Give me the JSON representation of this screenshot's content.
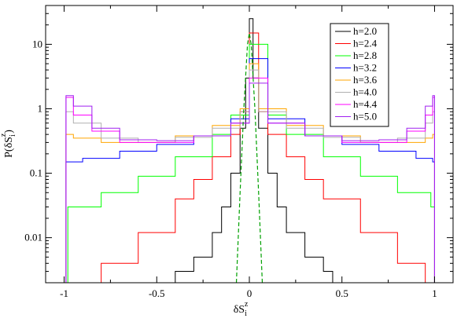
{
  "chart_data": {
    "type": "line",
    "xlabel": {
      "main": "δS",
      "sub": "i",
      "sup": "z"
    },
    "ylabel": {
      "main": "P(δS",
      "sub": "i",
      "sup": "z",
      "close": ")"
    },
    "xlim": [
      -1.1,
      1.1
    ],
    "ylim": [
      0.002,
      40
    ],
    "yscale": "log",
    "xticks": [
      -1,
      -0.5,
      0,
      0.5,
      1
    ],
    "xtick_labels": [
      "-1",
      "-0.5",
      "0",
      "0.5",
      "1"
    ],
    "yticks": [
      0.01,
      0.1,
      1,
      10
    ],
    "ytick_labels": [
      "0.01",
      "0.1",
      "1",
      "10"
    ],
    "legend_position": "top-right",
    "series": [
      {
        "name": "h=2.0",
        "color": "#000000",
        "points": [
          [
            -0.45,
            0.002
          ],
          [
            -0.4,
            0.003
          ],
          [
            -0.3,
            0.005
          ],
          [
            -0.2,
            0.012
          ],
          [
            -0.15,
            0.03
          ],
          [
            -0.1,
            0.1
          ],
          [
            -0.05,
            0.5
          ],
          [
            -0.02,
            3
          ],
          [
            0,
            25
          ],
          [
            0.02,
            3
          ],
          [
            0.05,
            0.5
          ],
          [
            0.1,
            0.1
          ],
          [
            0.15,
            0.03
          ],
          [
            0.2,
            0.012
          ],
          [
            0.3,
            0.005
          ],
          [
            0.4,
            0.003
          ],
          [
            0.45,
            0.002
          ]
        ]
      },
      {
        "name": "h=2.4",
        "color": "#ff0000",
        "points": [
          [
            -0.95,
            0.002
          ],
          [
            -0.8,
            0.004
          ],
          [
            -0.6,
            0.012
          ],
          [
            -0.4,
            0.04
          ],
          [
            -0.3,
            0.08
          ],
          [
            -0.2,
            0.18
          ],
          [
            -0.1,
            0.4
          ],
          [
            -0.05,
            0.9
          ],
          [
            0,
            15
          ],
          [
            0.05,
            0.9
          ],
          [
            0.1,
            0.4
          ],
          [
            0.2,
            0.18
          ],
          [
            0.3,
            0.08
          ],
          [
            0.4,
            0.04
          ],
          [
            0.6,
            0.012
          ],
          [
            0.8,
            0.004
          ],
          [
            0.95,
            0.002
          ]
        ]
      },
      {
        "name": "h=2.8",
        "color": "#00ff00",
        "points": [
          [
            -1,
            0.002
          ],
          [
            -0.98,
            0.03
          ],
          [
            -0.8,
            0.05
          ],
          [
            -0.6,
            0.09
          ],
          [
            -0.4,
            0.18
          ],
          [
            -0.2,
            0.4
          ],
          [
            -0.1,
            0.8
          ],
          [
            0,
            10
          ],
          [
            0.1,
            0.8
          ],
          [
            0.2,
            0.4
          ],
          [
            0.4,
            0.18
          ],
          [
            0.6,
            0.09
          ],
          [
            0.8,
            0.05
          ],
          [
            0.98,
            0.03
          ],
          [
            1,
            0.002
          ]
        ]
      },
      {
        "name": "h=3.2",
        "color": "#0000ff",
        "points": [
          [
            -1,
            0.002
          ],
          [
            -0.99,
            0.15
          ],
          [
            -0.9,
            0.17
          ],
          [
            -0.7,
            0.22
          ],
          [
            -0.5,
            0.28
          ],
          [
            -0.3,
            0.38
          ],
          [
            -0.1,
            0.7
          ],
          [
            0,
            6
          ],
          [
            0.1,
            0.7
          ],
          [
            0.3,
            0.38
          ],
          [
            0.5,
            0.28
          ],
          [
            0.7,
            0.22
          ],
          [
            0.9,
            0.17
          ],
          [
            0.99,
            0.15
          ],
          [
            1,
            0.002
          ]
        ]
      },
      {
        "name": "h=3.6",
        "color": "#ffa500",
        "points": [
          [
            -1,
            0.002
          ],
          [
            -0.99,
            0.4
          ],
          [
            -0.95,
            0.35
          ],
          [
            -0.8,
            0.3
          ],
          [
            -0.6,
            0.3
          ],
          [
            -0.4,
            0.38
          ],
          [
            -0.2,
            0.55
          ],
          [
            -0.05,
            1
          ],
          [
            0,
            5
          ],
          [
            0.05,
            1
          ],
          [
            0.2,
            0.55
          ],
          [
            0.4,
            0.38
          ],
          [
            0.6,
            0.3
          ],
          [
            0.8,
            0.3
          ],
          [
            0.95,
            0.35
          ],
          [
            0.99,
            0.4
          ],
          [
            1,
            0.002
          ]
        ]
      },
      {
        "name": "h=4.0",
        "color": "#b0b0b0",
        "points": [
          [
            -1,
            0.002
          ],
          [
            -0.99,
            0.9
          ],
          [
            -0.95,
            0.6
          ],
          [
            -0.8,
            0.35
          ],
          [
            -0.6,
            0.3
          ],
          [
            -0.4,
            0.36
          ],
          [
            -0.2,
            0.5
          ],
          [
            -0.05,
            0.9
          ],
          [
            0,
            4
          ],
          [
            0.05,
            0.9
          ],
          [
            0.2,
            0.5
          ],
          [
            0.4,
            0.36
          ],
          [
            0.6,
            0.3
          ],
          [
            0.8,
            0.35
          ],
          [
            0.95,
            0.6
          ],
          [
            0.99,
            0.9
          ],
          [
            1,
            0.002
          ]
        ]
      },
      {
        "name": "h=4.4",
        "color": "#ff00ff",
        "points": [
          [
            -1,
            0.002
          ],
          [
            -0.99,
            1.5
          ],
          [
            -0.95,
            0.8
          ],
          [
            -0.85,
            0.45
          ],
          [
            -0.7,
            0.3
          ],
          [
            -0.5,
            0.3
          ],
          [
            -0.3,
            0.38
          ],
          [
            -0.1,
            0.6
          ],
          [
            0,
            3
          ],
          [
            0.1,
            0.6
          ],
          [
            0.3,
            0.38
          ],
          [
            0.5,
            0.3
          ],
          [
            0.7,
            0.3
          ],
          [
            0.85,
            0.45
          ],
          [
            0.95,
            0.8
          ],
          [
            0.99,
            1.5
          ],
          [
            1,
            0.002
          ]
        ]
      },
      {
        "name": "h=5.0",
        "color": "#a020f0",
        "points": [
          [
            -1,
            0.002
          ],
          [
            -0.99,
            1.6
          ],
          [
            -0.95,
            1.1
          ],
          [
            -0.85,
            0.5
          ],
          [
            -0.7,
            0.33
          ],
          [
            -0.5,
            0.32
          ],
          [
            -0.3,
            0.38
          ],
          [
            -0.1,
            0.6
          ],
          [
            0,
            2.5
          ],
          [
            0.1,
            0.6
          ],
          [
            0.3,
            0.38
          ],
          [
            0.5,
            0.32
          ],
          [
            0.7,
            0.33
          ],
          [
            0.85,
            0.5
          ],
          [
            0.95,
            1.1
          ],
          [
            0.99,
            1.6
          ],
          [
            1,
            0.002
          ]
        ]
      }
    ],
    "extra_curves": [
      {
        "color": "#00a000",
        "style": "dashed",
        "points": [
          [
            -0.07,
            0.002
          ],
          [
            -0.05,
            0.05
          ],
          [
            -0.03,
            1
          ],
          [
            -0.01,
            10
          ],
          [
            0,
            15
          ],
          [
            0.01,
            10
          ],
          [
            0.03,
            1
          ],
          [
            0.05,
            0.05
          ],
          [
            0.07,
            0.002
          ]
        ]
      }
    ]
  }
}
